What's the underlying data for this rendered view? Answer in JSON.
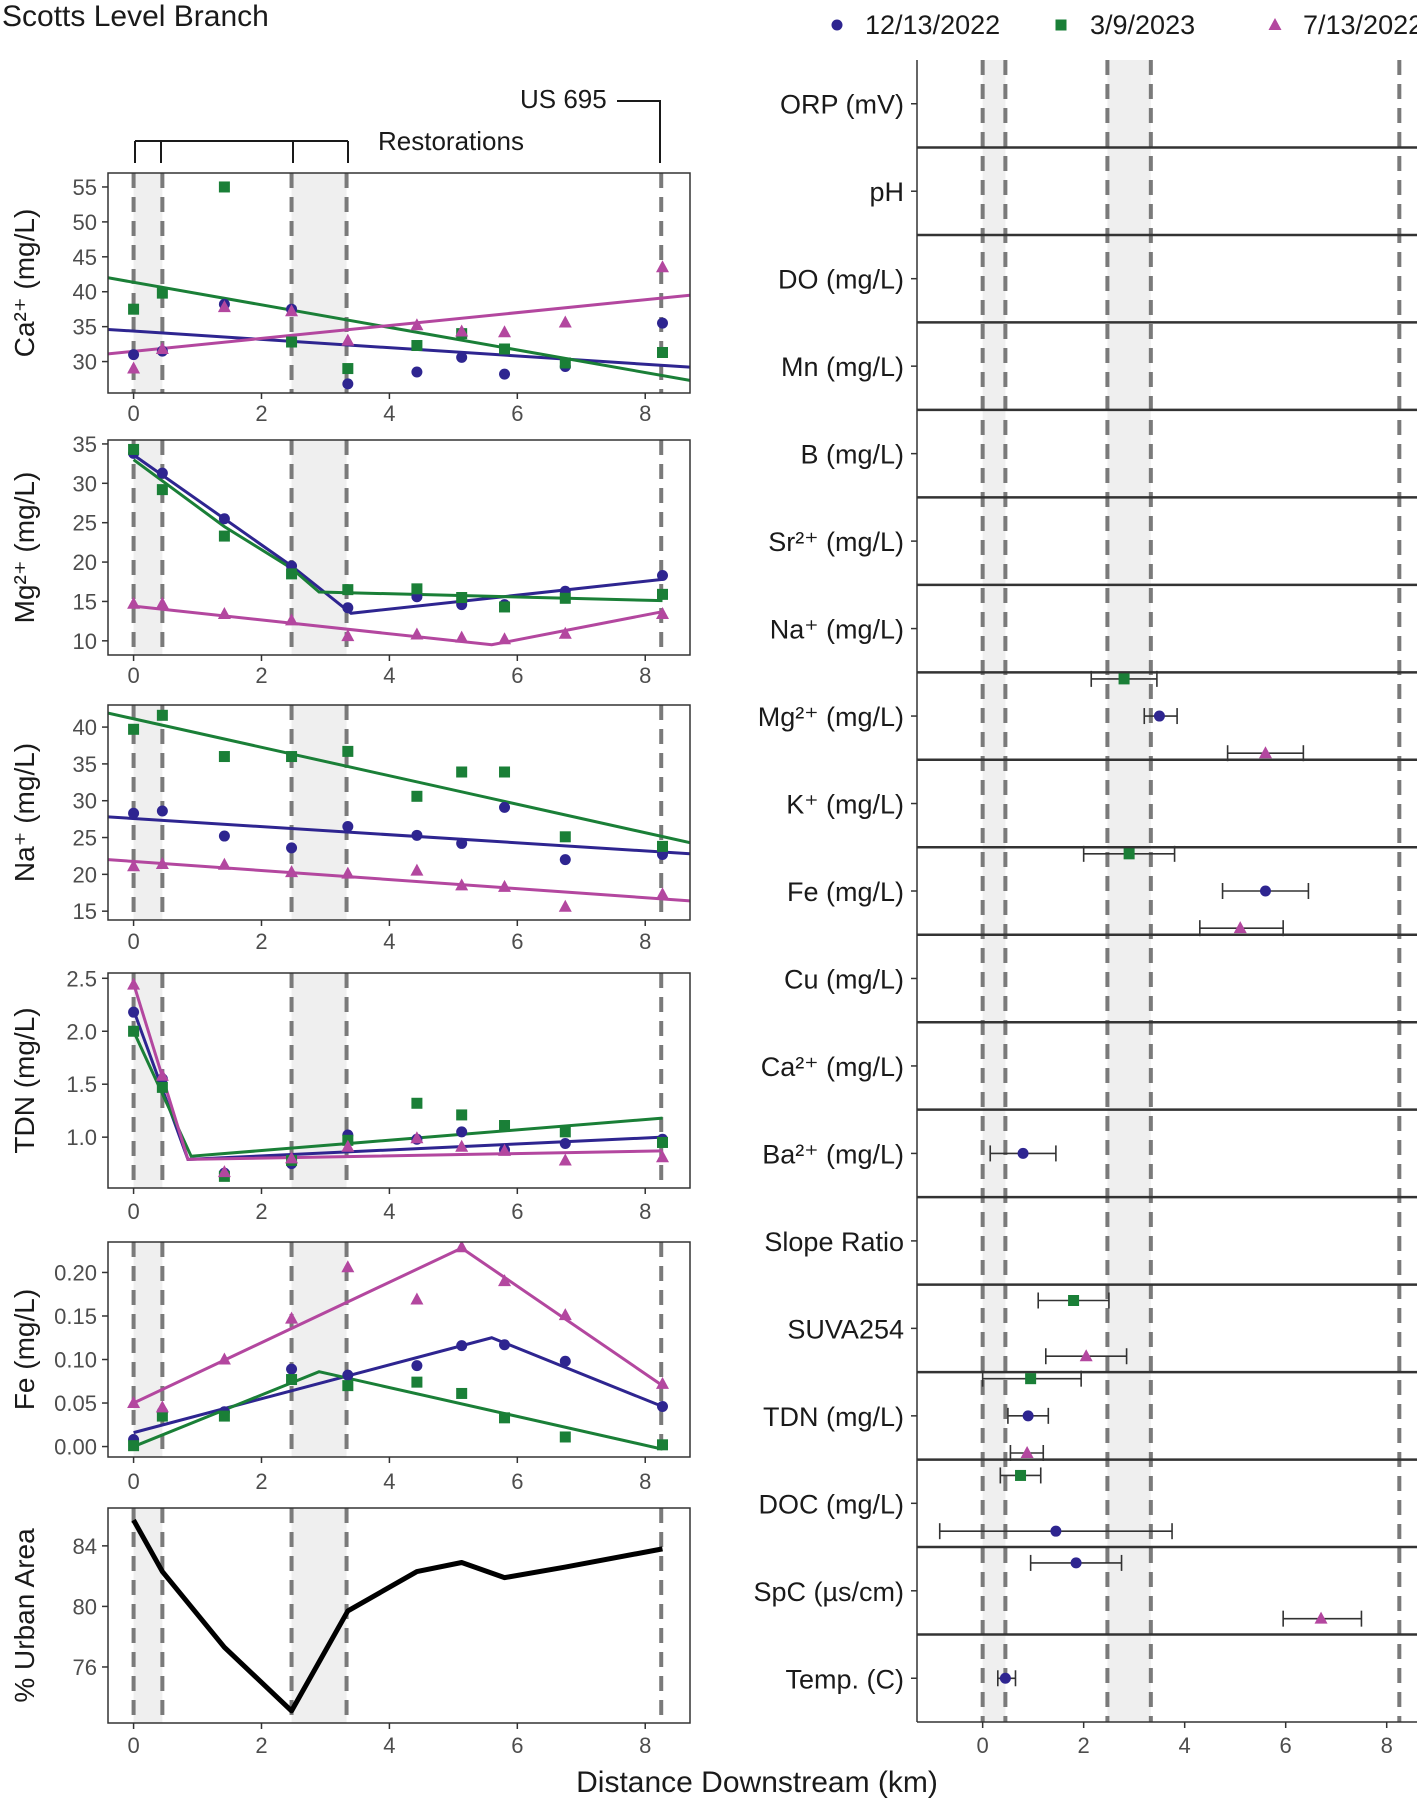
{
  "title": "Scotts Level Branch",
  "xlabel": "Distance Downstream (km)",
  "legend": [
    {
      "label": "12/13/2022",
      "color": "#2e2590",
      "shape": "circle"
    },
    {
      "label": "3/9/2023",
      "color": "#1a7f37",
      "shape": "square"
    },
    {
      "label": "7/13/2022",
      "color": "#b3479f",
      "shape": "triangle"
    }
  ],
  "annotations": {
    "restorations": "Restorations",
    "us695": "US 695"
  },
  "reference_lines_km": [
    0,
    0.45,
    2.47,
    3.33,
    8.25
  ],
  "shaded_bands_km": [
    [
      0,
      0.45
    ],
    [
      2.47,
      3.33
    ]
  ],
  "chart_data": [
    {
      "type": "scatter",
      "id": "ca",
      "ylabel": "Ca²⁺ (mg/L)",
      "xlim": [
        -0.4,
        8.7
      ],
      "ylim": [
        25.5,
        57
      ],
      "xticks": [
        0,
        2,
        4,
        6,
        8
      ],
      "yticks": [
        30,
        35,
        40,
        45,
        50,
        55
      ],
      "series": [
        {
          "name": "12/13/2022",
          "x": [
            0,
            0.45,
            1.42,
            2.47,
            3.35,
            4.43,
            5.13,
            5.8,
            6.75,
            8.27
          ],
          "y": [
            31,
            31.5,
            38.2,
            37.5,
            26.8,
            28.5,
            30.6,
            28.2,
            29.3,
            35.5
          ],
          "fit": [
            [
              -0.4,
              34.6
            ],
            [
              8.7,
              29.2
            ]
          ]
        },
        {
          "name": "3/9/2023",
          "x": [
            0,
            0.45,
            1.42,
            2.47,
            3.35,
            4.43,
            5.13,
            5.8,
            6.75,
            8.27
          ],
          "y": [
            37.5,
            39.8,
            55,
            32.8,
            29,
            32.3,
            34,
            31.8,
            29.8,
            31.3
          ],
          "fit": [
            [
              -0.4,
              42
            ],
            [
              8.7,
              27.3
            ]
          ]
        },
        {
          "name": "7/13/2022",
          "x": [
            0,
            0.45,
            1.42,
            2.47,
            3.35,
            4.43,
            5.13,
            5.8,
            6.75,
            8.27
          ],
          "y": [
            29,
            31.8,
            37.8,
            37.2,
            33,
            35.2,
            34.3,
            34.2,
            35.6,
            43.5
          ],
          "fit": [
            [
              -0.4,
              31.1
            ],
            [
              8.7,
              39.5
            ]
          ]
        }
      ]
    },
    {
      "type": "scatter",
      "id": "mg",
      "ylabel": "Mg²⁺ (mg/L)",
      "xlim": [
        -0.4,
        8.7
      ],
      "ylim": [
        8.2,
        35.5
      ],
      "xticks": [
        0,
        2,
        4,
        6,
        8
      ],
      "yticks": [
        10,
        15,
        20,
        25,
        30,
        35
      ],
      "series": [
        {
          "name": "12/13/2022",
          "x": [
            0,
            0.45,
            1.42,
            2.47,
            3.35,
            4.43,
            5.13,
            5.8,
            6.75,
            8.27
          ],
          "y": [
            33.8,
            31.3,
            25.5,
            19.5,
            14.2,
            15.6,
            14.6,
            14.6,
            16.3,
            18.3
          ],
          "fit": [
            [
              0,
              33.6
            ],
            [
              2.47,
              19.5
            ],
            [
              3.4,
              13.5
            ],
            [
              8.27,
              17.8
            ]
          ]
        },
        {
          "name": "3/9/2023",
          "x": [
            0,
            0.45,
            1.42,
            2.47,
            3.35,
            4.43,
            5.13,
            5.8,
            6.75,
            8.27
          ],
          "y": [
            34.3,
            29.2,
            23.3,
            18.5,
            16.5,
            16.6,
            15.5,
            14.3,
            15.4,
            15.9
          ],
          "fit": [
            [
              0,
              33
            ],
            [
              1.42,
              24.5
            ],
            [
              2.47,
              19.2
            ],
            [
              2.9,
              16.2
            ],
            [
              8.27,
              15.1
            ]
          ]
        },
        {
          "name": "7/13/2022",
          "x": [
            0,
            0.45,
            1.42,
            2.47,
            3.35,
            4.43,
            5.13,
            5.8,
            6.75,
            8.27
          ],
          "y": [
            14.7,
            14.7,
            13.4,
            12.6,
            10.6,
            10.8,
            10.4,
            10.2,
            10.9,
            13.4
          ],
          "fit": [
            [
              0,
              14.4
            ],
            [
              5.6,
              9.5
            ],
            [
              8.27,
              13.7
            ]
          ]
        }
      ]
    },
    {
      "type": "scatter",
      "id": "na",
      "ylabel": "Na⁺ (mg/L)",
      "xlim": [
        -0.4,
        8.7
      ],
      "ylim": [
        13.8,
        43
      ],
      "xticks": [
        0,
        2,
        4,
        6,
        8
      ],
      "yticks": [
        15,
        20,
        25,
        30,
        35,
        40
      ],
      "series": [
        {
          "name": "12/13/2022",
          "x": [
            0,
            0.45,
            1.42,
            2.47,
            3.35,
            4.43,
            5.13,
            5.8,
            6.75,
            8.27
          ],
          "y": [
            28.3,
            28.6,
            25.2,
            23.6,
            26.5,
            25.3,
            24.2,
            29.1,
            22,
            22.7
          ],
          "fit": [
            [
              -0.4,
              27.8
            ],
            [
              8.7,
              22.8
            ]
          ]
        },
        {
          "name": "3/9/2023",
          "x": [
            0,
            0.45,
            1.42,
            2.47,
            3.35,
            4.43,
            5.13,
            5.8,
            6.75,
            8.27
          ],
          "y": [
            39.7,
            41.6,
            36,
            36,
            36.7,
            30.6,
            33.9,
            33.9,
            25.1,
            23.8
          ],
          "fit": [
            [
              -0.4,
              41.9
            ],
            [
              8.7,
              24.3
            ]
          ]
        },
        {
          "name": "7/13/2022",
          "x": [
            0,
            0.45,
            1.42,
            2.47,
            3.35,
            4.43,
            5.13,
            5.8,
            6.75,
            8.27
          ],
          "y": [
            21.1,
            21.4,
            21.3,
            20.3,
            20.1,
            20.5,
            18.5,
            18.3,
            15.6,
            17.3
          ],
          "fit": [
            [
              -0.4,
              22
            ],
            [
              8.7,
              16.4
            ]
          ]
        }
      ]
    },
    {
      "type": "scatter",
      "id": "tdn",
      "ylabel": "TDN (mg/L)",
      "xlim": [
        -0.4,
        8.7
      ],
      "ylim": [
        0.52,
        2.55
      ],
      "xticks": [
        0,
        2,
        4,
        6,
        8
      ],
      "yticks": [
        1.0,
        1.5,
        2.0,
        2.5
      ],
      "ytick_labels": [
        "1.0",
        "1.5",
        "2.0",
        "2.5"
      ],
      "series": [
        {
          "name": "12/13/2022",
          "x": [
            0,
            0.45,
            1.42,
            2.47,
            3.35,
            4.43,
            5.13,
            5.8,
            6.75,
            8.27
          ],
          "y": [
            2.18,
            1.55,
            0.66,
            0.75,
            1.02,
            0.98,
            1.05,
            0.88,
            0.94,
            0.98
          ],
          "fit": [
            [
              0,
              2.2
            ],
            [
              0.85,
              0.79
            ],
            [
              8.27,
              1
            ]
          ]
        },
        {
          "name": "3/9/2023",
          "x": [
            0,
            0.45,
            1.42,
            2.47,
            3.35,
            4.43,
            5.13,
            5.8,
            6.75,
            8.27
          ],
          "y": [
            2,
            1.47,
            0.63,
            0.78,
            0.97,
            1.32,
            1.21,
            1.11,
            1.05,
            0.95
          ],
          "fit": [
            [
              0,
              2
            ],
            [
              0.9,
              0.82
            ],
            [
              8.27,
              1.18
            ]
          ]
        },
        {
          "name": "7/13/2022",
          "x": [
            0,
            0.45,
            1.42,
            2.47,
            3.35,
            4.43,
            5.13,
            5.8,
            6.75,
            8.27
          ],
          "y": [
            2.44,
            1.58,
            0.67,
            0.8,
            0.91,
            0.99,
            0.91,
            0.87,
            0.78,
            0.81
          ],
          "fit": [
            [
              0,
              2.45
            ],
            [
              0.85,
              0.79
            ],
            [
              8.27,
              0.87
            ]
          ]
        }
      ]
    },
    {
      "type": "scatter",
      "id": "fe",
      "ylabel": "Fe (mg/L)",
      "xlim": [
        -0.4,
        8.7
      ],
      "ylim": [
        -0.012,
        0.235
      ],
      "xticks": [
        0,
        2,
        4,
        6,
        8
      ],
      "yticks": [
        0,
        0.05,
        0.1,
        0.15,
        0.2
      ],
      "ytick_labels": [
        "0.00",
        "0.05",
        "0.10",
        "0.15",
        "0.20"
      ],
      "series": [
        {
          "name": "12/13/2022",
          "x": [
            0,
            0.45,
            1.42,
            2.47,
            3.35,
            4.43,
            5.13,
            5.8,
            6.75,
            8.27
          ],
          "y": [
            0.008,
            0.04,
            0.04,
            0.089,
            0.082,
            0.093,
            0.116,
            0.117,
            0.098,
            0.046
          ],
          "fit": [
            [
              0,
              0.016
            ],
            [
              5.6,
              0.125
            ],
            [
              8.27,
              0.046
            ]
          ]
        },
        {
          "name": "3/9/2023",
          "x": [
            0,
            0.45,
            1.42,
            2.47,
            3.35,
            4.43,
            5.13,
            5.8,
            6.75,
            8.27
          ],
          "y": [
            0.001,
            0.035,
            0.035,
            0.077,
            0.07,
            0.074,
            0.061,
            0.033,
            0.011,
            0.002
          ],
          "fit": [
            [
              0,
              0
            ],
            [
              2.9,
              0.086
            ],
            [
              8.27,
              -0.003
            ]
          ]
        },
        {
          "name": "7/13/2022",
          "x": [
            0,
            0.45,
            1.42,
            2.47,
            3.35,
            4.43,
            5.13,
            5.8,
            6.75,
            8.27
          ],
          "y": [
            0.05,
            0.045,
            0.1,
            0.147,
            0.206,
            0.169,
            0.229,
            0.19,
            0.151,
            0.072
          ],
          "fit": [
            [
              0,
              0.05
            ],
            [
              5.13,
              0.228
            ],
            [
              8.27,
              0.07
            ]
          ]
        }
      ]
    },
    {
      "type": "line",
      "id": "urban",
      "ylabel": "% Urban Area",
      "xlim": [
        -0.4,
        8.7
      ],
      "ylim": [
        72.3,
        86.5
      ],
      "xticks": [
        0,
        2,
        4,
        6,
        8
      ],
      "yticks": [
        76,
        80,
        84
      ],
      "x": [
        0,
        0.45,
        1.42,
        2.47,
        3.35,
        4.43,
        5.13,
        5.8,
        6.75,
        8.27
      ],
      "y": [
        85.7,
        82.3,
        77.3,
        73.1,
        79.7,
        82.3,
        82.9,
        81.9,
        82.6,
        83.8
      ]
    },
    {
      "type": "dotplot",
      "id": "sensitivity",
      "xlim": [
        -1.3,
        8.6
      ],
      "xticks": [
        0,
        2,
        4,
        6,
        8
      ],
      "rows": [
        "ORP (mV)",
        "pH",
        "DO (mg/L)",
        "Mn (mg/L)",
        "B (mg/L)",
        "Sr²⁺ (mg/L)",
        "Na⁺ (mg/L)",
        "Mg²⁺ (mg/L)",
        "K⁺ (mg/L)",
        "Fe (mg/L)",
        "Cu (mg/L)",
        "Ca²⁺ (mg/L)",
        "Ba²⁺ (mg/L)",
        "Slope Ratio",
        "SUVA254",
        "TDN (mg/L)",
        "DOC (mg/L)",
        "SpC (µs/cm)",
        "Temp. (C)"
      ],
      "points": [
        {
          "row": "Mg²⁺ (mg/L)",
          "series": "3/9/2023",
          "x": 2.8,
          "lo": 2.15,
          "hi": 3.45
        },
        {
          "row": "Mg²⁺ (mg/L)",
          "series": "12/13/2022",
          "x": 3.5,
          "lo": 3.2,
          "hi": 3.85
        },
        {
          "row": "Mg²⁺ (mg/L)",
          "series": "7/13/2022",
          "x": 5.6,
          "lo": 4.85,
          "hi": 6.35
        },
        {
          "row": "Fe (mg/L)",
          "series": "3/9/2023",
          "x": 2.9,
          "lo": 2,
          "hi": 3.8
        },
        {
          "row": "Fe (mg/L)",
          "series": "12/13/2022",
          "x": 5.6,
          "lo": 4.75,
          "hi": 6.45
        },
        {
          "row": "Fe (mg/L)",
          "series": "7/13/2022",
          "x": 5.1,
          "lo": 4.3,
          "hi": 5.95
        },
        {
          "row": "Ba²⁺ (mg/L)",
          "series": "12/13/2022",
          "x": 0.8,
          "lo": 0.15,
          "hi": 1.45
        },
        {
          "row": "SUVA254",
          "series": "3/9/2023",
          "x": 1.8,
          "lo": 1.1,
          "hi": 2.5
        },
        {
          "row": "SUVA254",
          "series": "7/13/2022",
          "x": 2.05,
          "lo": 1.25,
          "hi": 2.85
        },
        {
          "row": "TDN (mg/L)",
          "series": "3/9/2023",
          "x": 0.95,
          "lo": 0,
          "hi": 1.95
        },
        {
          "row": "TDN (mg/L)",
          "series": "12/13/2022",
          "x": 0.9,
          "lo": 0.5,
          "hi": 1.3
        },
        {
          "row": "TDN (mg/L)",
          "series": "7/13/2022",
          "x": 0.88,
          "lo": 0.55,
          "hi": 1.2
        },
        {
          "row": "DOC (mg/L)",
          "series": "3/9/2023",
          "x": 0.75,
          "lo": 0.35,
          "hi": 1.15
        },
        {
          "row": "DOC (mg/L)",
          "series": "12/13/2022",
          "x": 1.45,
          "lo": -0.85,
          "hi": 3.75
        },
        {
          "row": "SpC (µs/cm)",
          "series": "12/13/2022",
          "x": 1.85,
          "lo": 0.95,
          "hi": 2.75
        },
        {
          "row": "SpC (µs/cm)",
          "series": "7/13/2022",
          "x": 6.7,
          "lo": 5.95,
          "hi": 7.5
        },
        {
          "row": "Temp. (C)",
          "series": "12/13/2022",
          "x": 0.45,
          "lo": 0.3,
          "hi": 0.65
        }
      ]
    }
  ]
}
